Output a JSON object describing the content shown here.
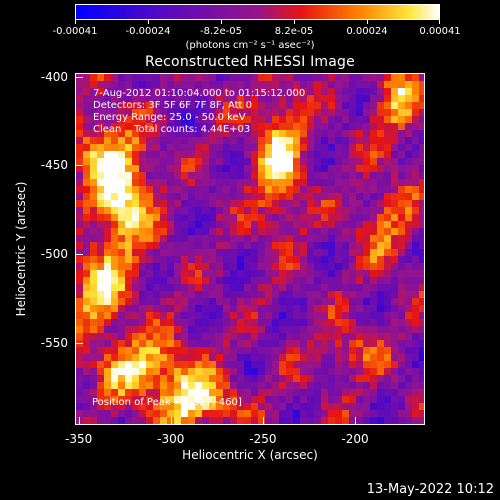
{
  "colorbar": {
    "tick_labels": [
      "-0.00041",
      "-0.00024",
      "-8.2e-05",
      "8.2e-05",
      "0.00024",
      "0.00041"
    ],
    "units": "(photons cm⁻² s⁻¹ asec⁻²)",
    "min": -0.00041,
    "max": 0.00041,
    "colormap": "rhessi-blue-red-yellow-white"
  },
  "title": "Reconstructed RHESSI Image",
  "info": {
    "time_range": "7-Aug-2012 01:10:04.000 to 01:15:12.000",
    "detectors": "Detectors: 3F 5F 6F 7F 8F, Att 0",
    "energy_range": "Energy Range: 25.0 - 50.0 keV",
    "clean_counts": "Clean    Total counts: 4.44E+03"
  },
  "peak": "Position of Peak = [-327,-460]",
  "axes": {
    "xlabel": "Heliocentric X (arcsec)",
    "ylabel": "Heliocentric Y (arcsec)",
    "xticks": [
      "-350",
      "-300",
      "-250",
      "-200"
    ],
    "yticks": [
      "-400",
      "-450",
      "-500",
      "-550"
    ],
    "xlim": [
      -352,
      -162
    ],
    "ylim": [
      -596,
      -398
    ]
  },
  "timestamp": "13-May-2022 10:12"
}
